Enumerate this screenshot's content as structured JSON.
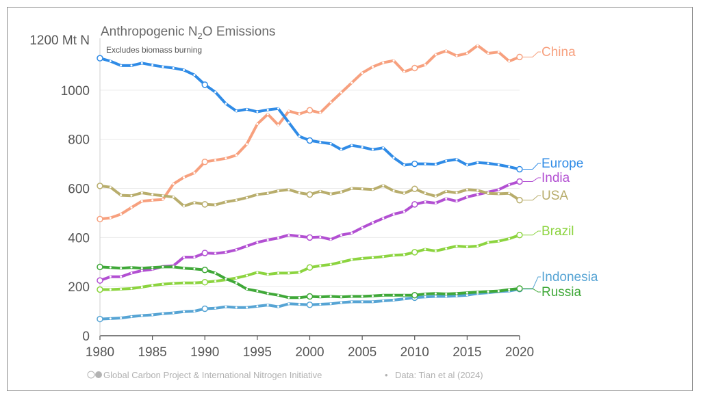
{
  "chart_data": {
    "type": "line",
    "title": "Anthropogenic N",
    "title_sub": "2",
    "title_suffix": "O Emissions",
    "subtitle": "Excludes biomass burning",
    "y_unit_label": "1200 Mt N",
    "footer": "Global Carbon Project & International Nitrogen Initiative",
    "footer_separator": "•",
    "footer_data": "Data: Tian et al (2024)",
    "xlim": [
      1980,
      2020
    ],
    "ylim": [
      0,
      1200
    ],
    "xticks": [
      1980,
      1985,
      1990,
      1995,
      2000,
      2005,
      2010,
      2015,
      2020
    ],
    "yticks": [
      0,
      200,
      400,
      600,
      800,
      1000
    ],
    "grid": true,
    "legend": "labels at right end of each line",
    "x": [
      1980,
      1981,
      1982,
      1983,
      1984,
      1985,
      1986,
      1987,
      1988,
      1989,
      1990,
      1991,
      1992,
      1993,
      1994,
      1995,
      1996,
      1997,
      1998,
      1999,
      2000,
      2001,
      2002,
      2003,
      2004,
      2005,
      2006,
      2007,
      2008,
      2009,
      2010,
      2011,
      2012,
      2013,
      2014,
      2015,
      2016,
      2017,
      2018,
      2019,
      2020
    ],
    "series": [
      {
        "name": "China",
        "color": "#f7a07e",
        "values": [
          475,
          480,
          495,
          522,
          548,
          552,
          555,
          618,
          645,
          663,
          708,
          715,
          722,
          735,
          780,
          862,
          902,
          858,
          915,
          903,
          918,
          908,
          950,
          990,
          1030,
          1070,
          1095,
          1112,
          1120,
          1075,
          1090,
          1103,
          1145,
          1160,
          1140,
          1150,
          1182,
          1150,
          1155,
          1118,
          1135
        ]
      },
      {
        "name": "Europe",
        "color": "#2f8be6",
        "values": [
          1130,
          1118,
          1100,
          1100,
          1110,
          1102,
          1095,
          1090,
          1082,
          1062,
          1022,
          992,
          945,
          915,
          922,
          912,
          920,
          925,
          868,
          812,
          795,
          788,
          782,
          758,
          775,
          768,
          758,
          765,
          725,
          695,
          700,
          700,
          698,
          712,
          718,
          695,
          705,
          702,
          696,
          688,
          678
        ]
      },
      {
        "name": "India",
        "color": "#b24fd2",
        "values": [
          225,
          240,
          240,
          255,
          265,
          270,
          282,
          285,
          320,
          320,
          337,
          335,
          340,
          350,
          365,
          380,
          390,
          398,
          410,
          405,
          400,
          402,
          392,
          410,
          418,
          440,
          460,
          478,
          495,
          505,
          535,
          545,
          540,
          558,
          548,
          565,
          575,
          585,
          595,
          615,
          628
        ]
      },
      {
        "name": "USA",
        "color": "#b8ad6c",
        "values": [
          610,
          605,
          572,
          570,
          582,
          575,
          570,
          565,
          528,
          542,
          535,
          533,
          545,
          552,
          562,
          575,
          580,
          590,
          595,
          582,
          575,
          588,
          577,
          585,
          600,
          598,
          595,
          612,
          590,
          580,
          598,
          580,
          568,
          588,
          582,
          595,
          592,
          580,
          578,
          580,
          552
        ]
      },
      {
        "name": "Brazil",
        "color": "#8cd43f",
        "values": [
          188,
          188,
          190,
          192,
          198,
          205,
          210,
          213,
          215,
          215,
          218,
          222,
          228,
          235,
          245,
          258,
          250,
          255,
          255,
          258,
          278,
          285,
          290,
          300,
          310,
          315,
          318,
          322,
          328,
          330,
          340,
          352,
          345,
          355,
          365,
          362,
          365,
          380,
          385,
          395,
          410
        ]
      },
      {
        "name": "Indonesia",
        "color": "#56a4d4",
        "values": [
          68,
          70,
          72,
          78,
          82,
          85,
          90,
          93,
          98,
          100,
          110,
          112,
          118,
          115,
          115,
          120,
          125,
          118,
          130,
          128,
          126,
          128,
          130,
          135,
          138,
          138,
          138,
          142,
          145,
          150,
          155,
          158,
          160,
          160,
          162,
          165,
          172,
          175,
          180,
          182,
          190
        ]
      },
      {
        "name": "Russia",
        "color": "#3fa838",
        "values": [
          280,
          278,
          275,
          278,
          275,
          278,
          280,
          280,
          275,
          272,
          268,
          255,
          232,
          215,
          190,
          182,
          172,
          165,
          155,
          155,
          160,
          158,
          160,
          158,
          160,
          160,
          162,
          165,
          165,
          165,
          165,
          170,
          172,
          170,
          172,
          175,
          178,
          180,
          182,
          188,
          192
        ]
      }
    ]
  }
}
